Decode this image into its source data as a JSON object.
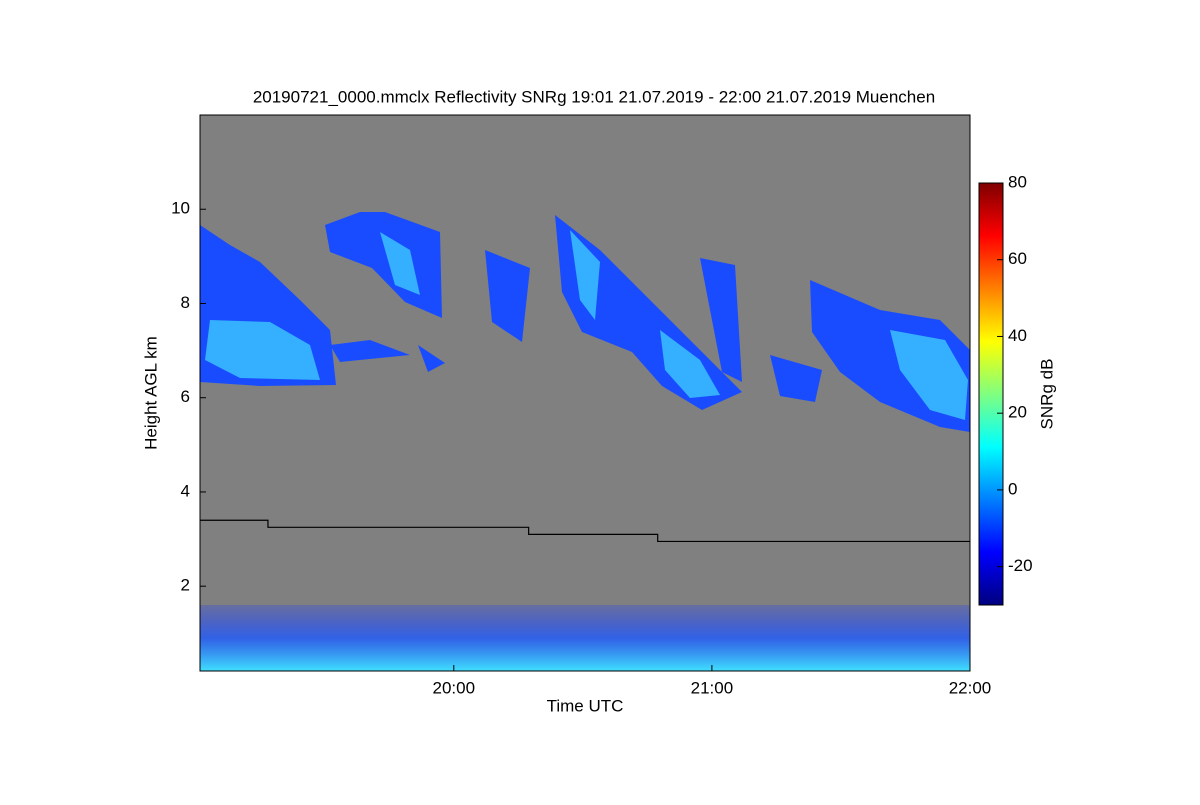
{
  "chart_data": {
    "type": "time-height",
    "title": "20190721_0000.mmclx Reflectivity SNRg   19:01 21.07.2019 - 22:00 21.07.2019 Muenchen",
    "x_label": "Time UTC",
    "y_label": "Height AGL km",
    "xlim": [
      19.0167,
      22
    ],
    "xticks": [
      {
        "value": 20,
        "label": "20:00"
      },
      {
        "value": 21,
        "label": "21:00"
      },
      {
        "value": 22,
        "label": "22:00"
      }
    ],
    "ylim": [
      0.2,
      12
    ],
    "yticks": [
      2,
      4,
      6,
      8,
      10
    ],
    "background_color": "#808080",
    "colorbar": {
      "label": "SNRg dB",
      "colormap": "jet",
      "lim": [
        -30,
        80
      ],
      "ticks": [
        -20,
        0,
        20,
        40,
        60,
        80
      ]
    },
    "series": [
      {
        "color": "#000000",
        "x": [
          19.0167,
          19.28,
          19.28,
          20.29,
          20.29,
          20.79,
          20.79,
          22
        ],
        "values": [
          3.4,
          3.4,
          3.25,
          3.25,
          3.1,
          3.1,
          2.95,
          2.95
        ]
      }
    ]
  }
}
